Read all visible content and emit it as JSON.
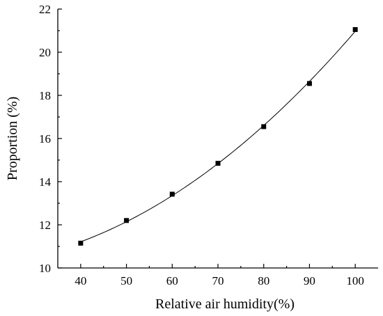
{
  "chart_data": {
    "type": "scatter",
    "title": "",
    "xlabel": "Relative air humidity(%)",
    "ylabel": "Proportion (%)",
    "xlim": [
      35,
      105
    ],
    "ylim": [
      10,
      22
    ],
    "xticks": [
      40,
      50,
      60,
      70,
      80,
      90,
      100
    ],
    "yticks": [
      10,
      12,
      14,
      16,
      18,
      20,
      22
    ],
    "grid": false,
    "legend": "none",
    "marker": "square",
    "fit_line": "smooth curve through points",
    "colors": {
      "marker": "#000000",
      "line": "#000000",
      "axes": "#000000"
    },
    "series": [
      {
        "x": [
          40,
          50,
          60,
          70,
          80,
          90,
          100
        ],
        "y": [
          11.15,
          12.2,
          13.42,
          14.85,
          16.55,
          18.55,
          21.05
        ]
      }
    ]
  }
}
